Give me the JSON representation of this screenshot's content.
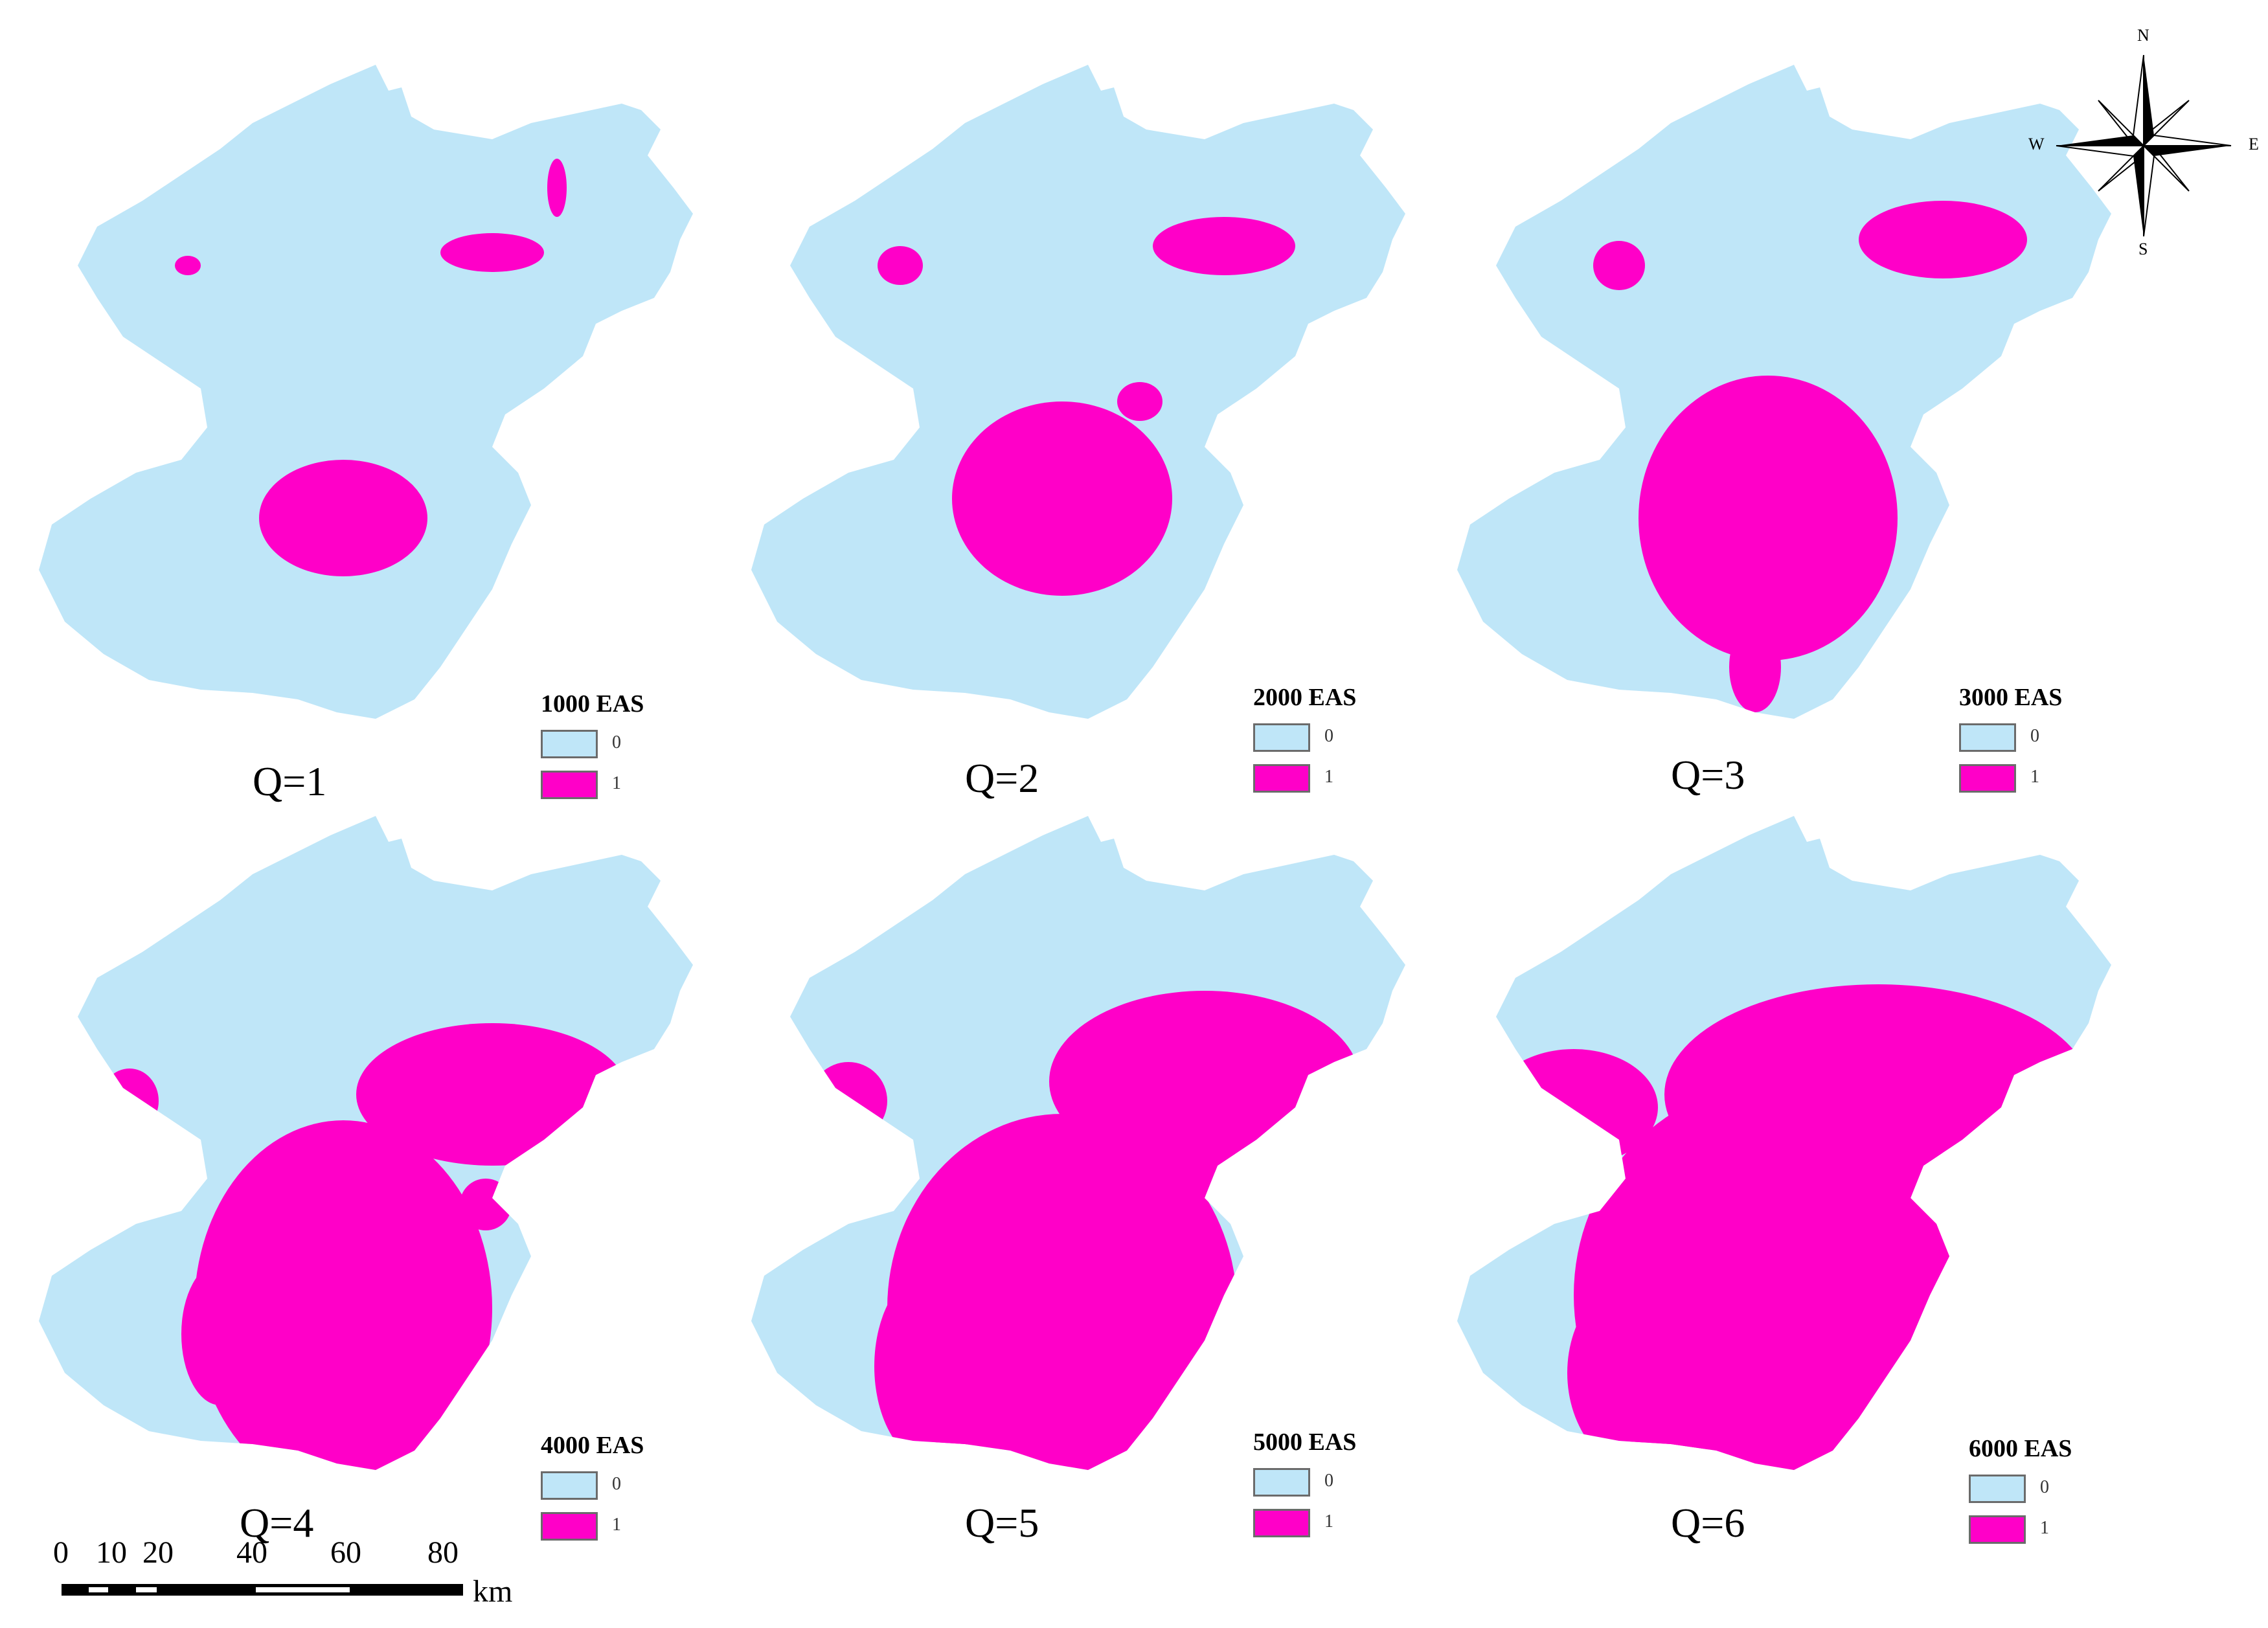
{
  "panels": [
    {
      "q_label": "Q=1",
      "legend_title": "1000 EAS",
      "legend_items": [
        "0",
        "1"
      ],
      "urban_level": 1
    },
    {
      "q_label": "Q=2",
      "legend_title": "2000 EAS",
      "legend_items": [
        "0",
        "1"
      ],
      "urban_level": 2
    },
    {
      "q_label": "Q=3",
      "legend_title": "3000 EAS",
      "legend_items": [
        "0",
        "1"
      ],
      "urban_level": 3
    },
    {
      "q_label": "Q=4",
      "legend_title": "4000 EAS",
      "legend_items": [
        "0",
        "1"
      ],
      "urban_level": 4
    },
    {
      "q_label": "Q=5",
      "legend_title": "5000 EAS",
      "legend_items": [
        "0",
        "1"
      ],
      "urban_level": 5
    },
    {
      "q_label": "Q=6",
      "legend_title": "6000 EAS",
      "legend_items": [
        "0",
        "1"
      ],
      "urban_level": 6
    }
  ],
  "compass": {
    "n": "N",
    "s": "S",
    "e": "E",
    "w": "W"
  },
  "scale_bar": {
    "ticks": [
      "0",
      "10",
      "20",
      "40",
      "60",
      "80"
    ],
    "unit": "km"
  },
  "colors": {
    "land": "#bfe6f8",
    "urban": "#ff00c8",
    "legend_border": "#6b6b6b"
  }
}
